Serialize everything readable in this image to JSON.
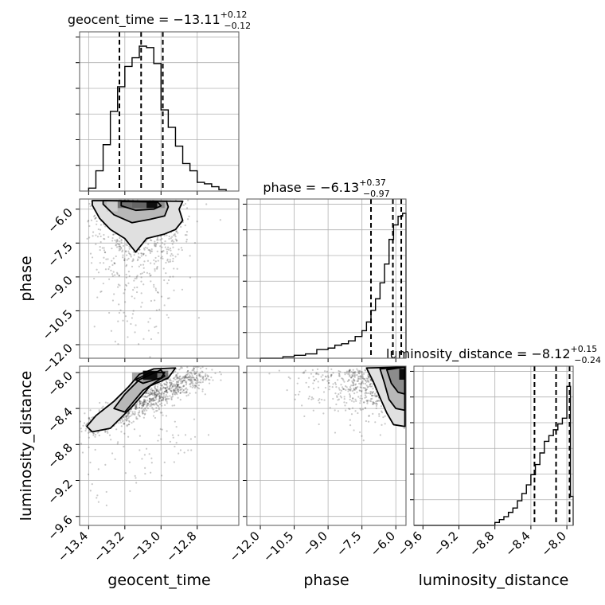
{
  "chart_data": {
    "type": "corner",
    "params": [
      "geocent_time",
      "phase",
      "luminosity_distance"
    ],
    "axis_labels": [
      "geocent_time",
      "phase",
      "luminosity_distance"
    ],
    "ranges": {
      "geocent_time": [
        -13.45,
        -12.57
      ],
      "phase": [
        -12.6,
        -5.55
      ],
      "luminosity_distance": [
        -9.7,
        -7.93
      ]
    },
    "ticks": {
      "geocent_time": [
        {
          "v": -13.4,
          "label": "−13.4"
        },
        {
          "v": -13.2,
          "label": "−13.2"
        },
        {
          "v": -13.0,
          "label": "−13.0"
        },
        {
          "v": -12.8,
          "label": "−12.8"
        }
      ],
      "phase": [
        {
          "v": -12.0,
          "label": "−12.0"
        },
        {
          "v": -10.5,
          "label": "−10.5"
        },
        {
          "v": -9.0,
          "label": "−9.0"
        },
        {
          "v": -7.5,
          "label": "−7.5"
        },
        {
          "v": -6.0,
          "label": "−6.0"
        }
      ],
      "luminosity_distance": [
        {
          "v": -9.6,
          "label": "−9.6"
        },
        {
          "v": -9.2,
          "label": "−9.2"
        },
        {
          "v": -8.8,
          "label": "−8.8"
        },
        {
          "v": -8.4,
          "label": "−8.4"
        },
        {
          "v": -8.0,
          "label": "−8.0"
        }
      ]
    },
    "titles": [
      {
        "name": "geocent_time",
        "value": "−13.11",
        "plus": "+0.12",
        "minus": "−0.12"
      },
      {
        "name": "phase",
        "value": "−6.13",
        "plus": "+0.37",
        "minus": "−0.97"
      },
      {
        "name": "luminosity_distance",
        "value": "−8.12",
        "plus": "+0.15",
        "minus": "−0.24"
      }
    ],
    "quantiles": {
      "geocent_time": [
        -13.23,
        -13.11,
        -12.99
      ],
      "phase": [
        -7.1,
        -6.13,
        -5.76
      ],
      "luminosity_distance": [
        -8.36,
        -8.12,
        -7.97
      ]
    },
    "histograms": {
      "geocent_time": {
        "edges": [
          -13.4,
          -13.36,
          -13.32,
          -13.28,
          -13.24,
          -13.2,
          -13.16,
          -13.12,
          -13.08,
          -13.04,
          -13.0,
          -12.96,
          -12.92,
          -12.88,
          -12.84,
          -12.8,
          -12.76,
          -12.72,
          -12.68,
          -12.64
        ],
        "counts": [
          0.02,
          0.14,
          0.32,
          0.55,
          0.72,
          0.86,
          0.92,
          1.0,
          0.99,
          0.88,
          0.56,
          0.44,
          0.31,
          0.19,
          0.14,
          0.06,
          0.05,
          0.03,
          0.01
        ]
      },
      "phase": {
        "edges": [
          -12.0,
          -11.0,
          -10.5,
          -10.0,
          -9.5,
          -9.0,
          -8.7,
          -8.4,
          -8.1,
          -7.8,
          -7.5,
          -7.3,
          -7.1,
          -6.9,
          -6.7,
          -6.5,
          -6.3,
          -6.1,
          -5.9,
          -5.7,
          -5.55
        ],
        "counts": [
          0.0,
          0.01,
          0.02,
          0.03,
          0.06,
          0.07,
          0.09,
          0.1,
          0.12,
          0.15,
          0.19,
          0.25,
          0.33,
          0.41,
          0.52,
          0.65,
          0.82,
          0.92,
          0.98,
          1.0
        ]
      },
      "luminosity_distance": {
        "edges": [
          -9.7,
          -8.8,
          -8.75,
          -8.7,
          -8.65,
          -8.6,
          -8.55,
          -8.5,
          -8.45,
          -8.4,
          -8.35,
          -8.3,
          -8.25,
          -8.2,
          -8.15,
          -8.1,
          -8.05,
          -8.0,
          -7.96,
          -7.93
        ],
        "counts": [
          0.0,
          0.02,
          0.04,
          0.06,
          0.09,
          0.12,
          0.17,
          0.22,
          0.28,
          0.35,
          0.42,
          0.5,
          0.58,
          0.62,
          0.66,
          0.7,
          0.74,
          0.96,
          0.2
        ]
      }
    },
    "contours": {
      "phase_vs_geocent_time": [
        [
          [
            -13.38,
            -5.82
          ],
          [
            -13.34,
            -6.4
          ],
          [
            -13.28,
            -6.9
          ],
          [
            -13.2,
            -7.3
          ],
          [
            -13.14,
            -7.9
          ],
          [
            -13.08,
            -7.3
          ],
          [
            -12.98,
            -7.1
          ],
          [
            -12.92,
            -6.9
          ],
          [
            -12.88,
            -6.5
          ],
          [
            -12.9,
            -6.0
          ],
          [
            -12.88,
            -5.65
          ],
          [
            -13.38,
            -5.62
          ]
        ],
        [
          [
            -13.32,
            -5.78
          ],
          [
            -13.26,
            -6.25
          ],
          [
            -13.16,
            -6.6
          ],
          [
            -13.06,
            -6.45
          ],
          [
            -12.98,
            -6.3
          ],
          [
            -12.96,
            -5.9
          ],
          [
            -12.97,
            -5.65
          ],
          [
            -13.32,
            -5.62
          ]
        ],
        [
          [
            -13.22,
            -5.85
          ],
          [
            -13.14,
            -6.05
          ],
          [
            -13.04,
            -6.0
          ],
          [
            -13.0,
            -5.85
          ],
          [
            -13.02,
            -5.68
          ],
          [
            -13.22,
            -5.66
          ]
        ]
      ],
      "luminosity_distance_vs_geocent_time": [
        [
          [
            -13.41,
            -8.6
          ],
          [
            -13.36,
            -8.48
          ],
          [
            -13.26,
            -8.32
          ],
          [
            -13.18,
            -8.16
          ],
          [
            -13.12,
            -8.02
          ],
          [
            -13.04,
            -7.96
          ],
          [
            -12.92,
            -7.95
          ],
          [
            -12.96,
            -8.06
          ],
          [
            -13.06,
            -8.15
          ],
          [
            -13.16,
            -8.38
          ],
          [
            -13.28,
            -8.62
          ],
          [
            -13.38,
            -8.66
          ]
        ],
        [
          [
            -13.26,
            -8.4
          ],
          [
            -13.2,
            -8.24
          ],
          [
            -13.12,
            -8.08
          ],
          [
            -13.0,
            -7.97
          ],
          [
            -12.98,
            -8.04
          ],
          [
            -13.1,
            -8.2
          ],
          [
            -13.2,
            -8.44
          ]
        ],
        [
          [
            -13.14,
            -8.08
          ],
          [
            -13.06,
            -8.0
          ],
          [
            -12.98,
            -8.0
          ],
          [
            -13.0,
            -8.06
          ],
          [
            -13.1,
            -8.12
          ]
        ]
      ],
      "luminosity_distance_vs_phase": [
        [
          [
            -7.3,
            -7.95
          ],
          [
            -7.0,
            -8.1
          ],
          [
            -6.7,
            -8.28
          ],
          [
            -6.4,
            -8.45
          ],
          [
            -6.1,
            -8.58
          ],
          [
            -5.6,
            -8.6
          ],
          [
            -5.6,
            -7.94
          ]
        ],
        [
          [
            -6.7,
            -7.96
          ],
          [
            -6.5,
            -8.12
          ],
          [
            -6.3,
            -8.3
          ],
          [
            -6.0,
            -8.4
          ],
          [
            -5.6,
            -8.42
          ],
          [
            -5.6,
            -7.94
          ]
        ],
        [
          [
            -6.4,
            -7.97
          ],
          [
            -6.2,
            -8.12
          ],
          [
            -5.9,
            -8.22
          ],
          [
            -5.6,
            -8.24
          ],
          [
            -5.6,
            -7.94
          ]
        ]
      ]
    },
    "density_cells": {
      "phase_vs_geocent_time": [
        {
          "x": [
            -13.24,
            -13.16
          ],
          "y": [
            -5.95,
            -5.65
          ],
          "shade": 0.45
        },
        {
          "x": [
            -13.16,
            -13.08
          ],
          "y": [
            -5.95,
            -5.65
          ],
          "shade": 0.4
        },
        {
          "x": [
            -13.08,
            -13.02
          ],
          "y": [
            -5.95,
            -5.65
          ],
          "shade": 0.05
        },
        {
          "x": [
            -13.02,
            -12.98
          ],
          "y": [
            -5.95,
            -5.65
          ],
          "shade": 0.55
        },
        {
          "x": [
            -13.3,
            -13.24
          ],
          "y": [
            -6.1,
            -5.65
          ],
          "shade": 0.8
        }
      ],
      "luminosity_distance_vs_geocent_time": [
        {
          "x": [
            -13.1,
            -13.02
          ],
          "y": [
            -8.08,
            -7.98
          ],
          "shade": 0.05
        },
        {
          "x": [
            -13.02,
            -12.96
          ],
          "y": [
            -8.08,
            -7.98
          ],
          "shade": 0.45
        },
        {
          "x": [
            -13.16,
            -13.1
          ],
          "y": [
            -8.1,
            -8.0
          ],
          "shade": 0.65
        }
      ],
      "luminosity_distance_vs_phase": [
        {
          "x": [
            -5.85,
            -5.55
          ],
          "y": [
            -8.08,
            -7.96
          ],
          "shade": 0.05
        },
        {
          "x": [
            -6.05,
            -5.85
          ],
          "y": [
            -8.1,
            -7.96
          ],
          "shade": 0.55
        }
      ]
    }
  }
}
